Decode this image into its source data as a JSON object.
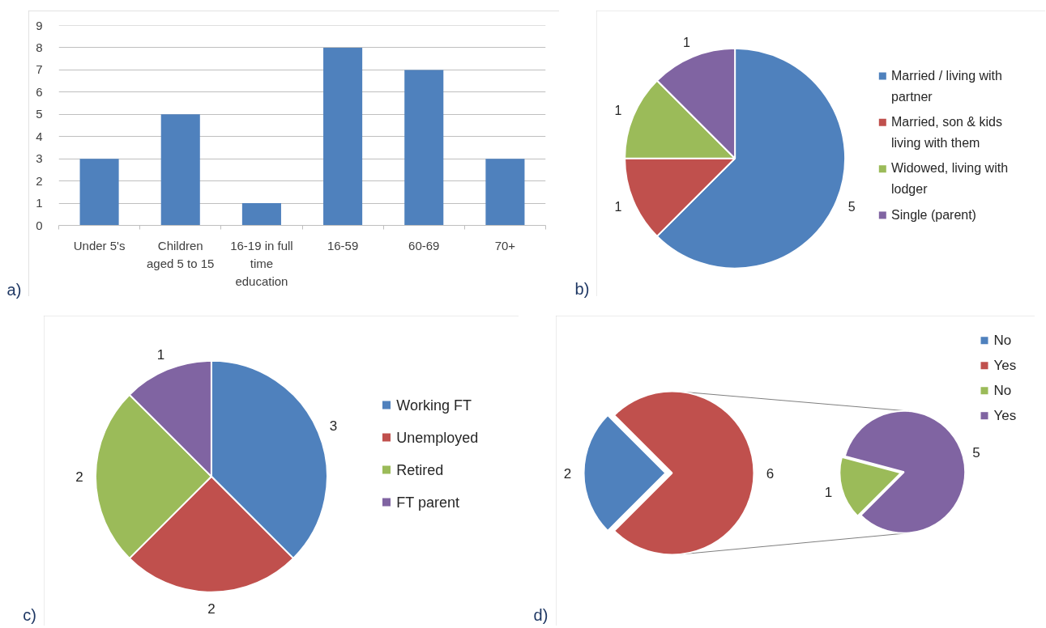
{
  "chart_data": [
    {
      "type": "bar",
      "categories": [
        "Under 5's",
        "Children aged 5 to 15",
        "16-19 in full time education",
        "16-59",
        "60-69",
        "70+"
      ],
      "values": [
        3,
        5,
        1,
        8,
        7,
        3
      ],
      "color": "#4f81bd",
      "ylim": [
        0,
        9
      ],
      "yticks": [
        0,
        1,
        2,
        3,
        4,
        5,
        6,
        7,
        8,
        9
      ],
      "grid": "y",
      "annotations": [
        "a)"
      ]
    },
    {
      "type": "pie",
      "categories": [
        "Married / living with partner",
        "Married, son & kids living with them",
        "Widowed, living with lodger",
        "Single (parent)"
      ],
      "values": [
        5,
        1,
        1,
        1
      ],
      "colors": [
        "#4f81bd",
        "#c0504d",
        "#9bbb59",
        "#8064a2"
      ],
      "data_labels": true,
      "legend": "right",
      "annotations": [
        "b)"
      ]
    },
    {
      "type": "pie",
      "categories": [
        "Working FT",
        "Unemployed",
        "Retired",
        "FT parent"
      ],
      "values": [
        3,
        2,
        2,
        1
      ],
      "colors": [
        "#4f81bd",
        "#c0504d",
        "#9bbb59",
        "#8064a2"
      ],
      "data_labels": true,
      "legend": "right",
      "annotations": [
        "c)"
      ]
    },
    {
      "type": "pie",
      "categories": [
        "No",
        "Yes"
      ],
      "values": [
        2,
        6
      ],
      "colors": [
        "#4f81bd",
        "#c0504d"
      ],
      "data_labels": true,
      "legend": "top right",
      "annotations": [
        "d)"
      ]
    },
    {
      "type": "pie",
      "categories": [
        "No",
        "Yes"
      ],
      "values": [
        1,
        5
      ],
      "colors": [
        "#9bbb59",
        "#8064a2"
      ],
      "data_labels": true,
      "legend": "top right"
    }
  ]
}
